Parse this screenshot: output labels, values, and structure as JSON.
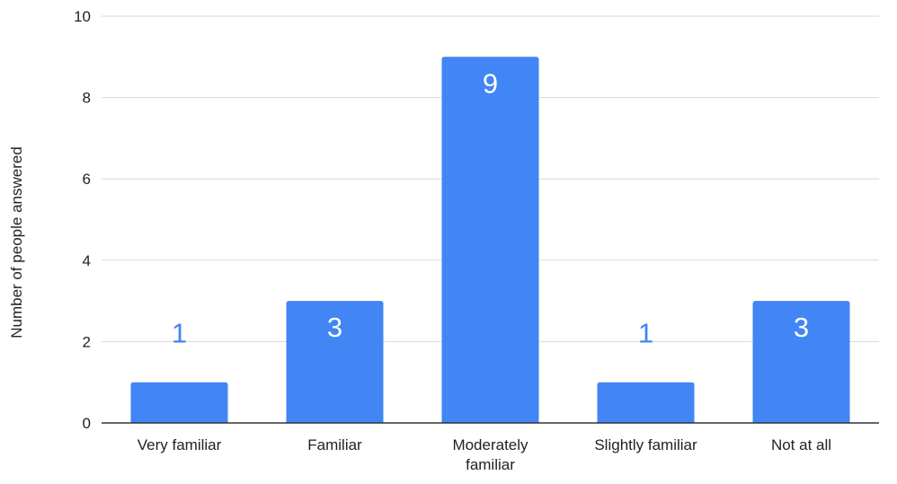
{
  "chart_data": {
    "type": "bar",
    "title": "",
    "xlabel": "",
    "ylabel": "Number of people answered",
    "categories": [
      [
        "Very familiar"
      ],
      [
        "Familiar"
      ],
      [
        "Moderately",
        "familiar"
      ],
      [
        "Slightly familiar"
      ],
      [
        "Not at all"
      ]
    ],
    "values": [
      1,
      3,
      9,
      1,
      3
    ],
    "data_labels": [
      "1",
      "3",
      "9",
      "1",
      "3"
    ],
    "ylim": [
      0,
      10
    ],
    "yticks": [
      0,
      2,
      4,
      6,
      8,
      10
    ],
    "grid": true,
    "legend": "none",
    "colors": {
      "bar": "#4285F4",
      "label_inside": "#ffffff",
      "label_outside": "#4285F4",
      "grid": "#d9d9d9",
      "axis": "#333333",
      "text": "#222222"
    }
  }
}
